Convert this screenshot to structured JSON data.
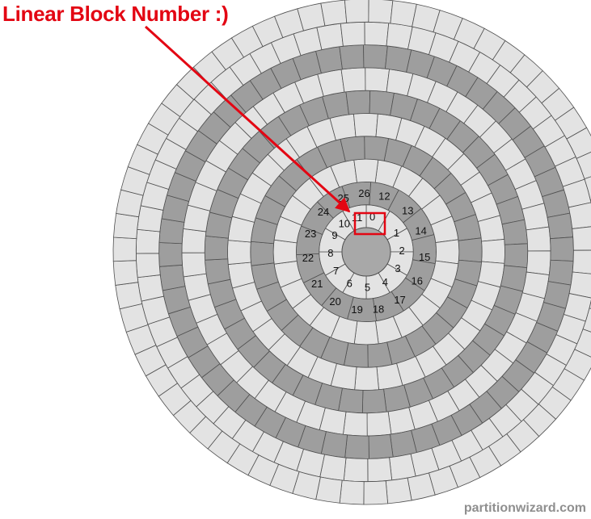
{
  "title": "Linear Block Number :)",
  "watermark": "partitionwizard.com",
  "colors": {
    "annotation": "#e30613",
    "light_track": "#e3e3e3",
    "dark_track": "#9e9e9e",
    "cell_border": "#505050",
    "hub": "#a8a8a8",
    "label_text": "#111111",
    "watermark": "#8f8f8f"
  },
  "disk": {
    "tracks": [
      {
        "shade": "light",
        "sectors": 12
      },
      {
        "shade": "dark",
        "sectors": 15
      },
      {
        "shade": "light",
        "sectors": 24
      },
      {
        "shade": "dark",
        "sectors": 30
      },
      {
        "shade": "light",
        "sectors": 36
      },
      {
        "shade": "dark",
        "sectors": 42
      },
      {
        "shade": "light",
        "sectors": 48
      },
      {
        "shade": "dark",
        "sectors": 54
      },
      {
        "shade": "light",
        "sectors": 60
      },
      {
        "shade": "light",
        "sectors": 66
      }
    ],
    "block_labels": [
      {
        "text": "0",
        "track": 0,
        "angle": 10
      },
      {
        "text": "1",
        "track": 0,
        "angle": 58
      },
      {
        "text": "2",
        "track": 0,
        "angle": 88
      },
      {
        "text": "3",
        "track": 0,
        "angle": 118
      },
      {
        "text": "4",
        "track": 0,
        "angle": 148
      },
      {
        "text": "5",
        "track": 0,
        "angle": 178
      },
      {
        "text": "6",
        "track": 0,
        "angle": 208
      },
      {
        "text": "7",
        "track": 0,
        "angle": 238
      },
      {
        "text": "8",
        "track": 0,
        "angle": 268
      },
      {
        "text": "9",
        "track": 0,
        "angle": 298
      },
      {
        "text": "10",
        "track": 0,
        "angle": 322
      },
      {
        "text": "11",
        "track": 0,
        "angle": 345
      },
      {
        "text": "12",
        "track": 1,
        "angle": 18
      },
      {
        "text": "13",
        "track": 1,
        "angle": 45
      },
      {
        "text": "14",
        "track": 1,
        "angle": 69
      },
      {
        "text": "15",
        "track": 1,
        "angle": 95
      },
      {
        "text": "16",
        "track": 1,
        "angle": 120
      },
      {
        "text": "17",
        "track": 1,
        "angle": 145
      },
      {
        "text": "18",
        "track": 1,
        "angle": 168
      },
      {
        "text": "19",
        "track": 1,
        "angle": 189
      },
      {
        "text": "20",
        "track": 1,
        "angle": 212
      },
      {
        "text": "21",
        "track": 1,
        "angle": 237
      },
      {
        "text": "22",
        "track": 1,
        "angle": 264
      },
      {
        "text": "23",
        "track": 1,
        "angle": 288
      },
      {
        "text": "24",
        "track": 1,
        "angle": 313
      },
      {
        "text": "25",
        "track": 1,
        "angle": 337
      },
      {
        "text": "26",
        "track": 1,
        "angle": 358
      }
    ],
    "highlighted_block": "0"
  }
}
